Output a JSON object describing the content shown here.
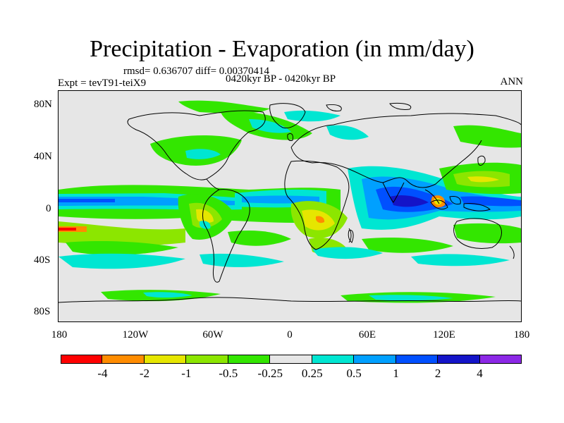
{
  "header": {
    "title": "Precipitation - Evaporation (in mm/day)",
    "stats": "rmsd= 0.636707 diff= 0.00370414",
    "period": "0420kyr BP - 0420kyr BP",
    "expt": "Expt = tevT91-teiX9",
    "season": "ANN"
  },
  "axes": {
    "y_ticks": [
      "80N",
      "40N",
      "0",
      "40S",
      "80S"
    ],
    "x_ticks": [
      "180",
      "120W",
      "60W",
      "0",
      "60E",
      "120E",
      "180"
    ]
  },
  "colorbar": {
    "labels": [
      "-4",
      "-2",
      "-1",
      "-0.5",
      "-0.25",
      "0.25",
      "0.5",
      "1",
      "2",
      "4"
    ],
    "colors": [
      "#ff0000",
      "#ff8c00",
      "#e6e600",
      "#8ce600",
      "#33e600",
      "#e6e6e6",
      "#00e6d2",
      "#00a0ff",
      "#0050ff",
      "#1414c8",
      "#8c28e6"
    ]
  },
  "colors": {
    "background_neutral": "#e6e6e6",
    "coast": "#000000"
  }
}
